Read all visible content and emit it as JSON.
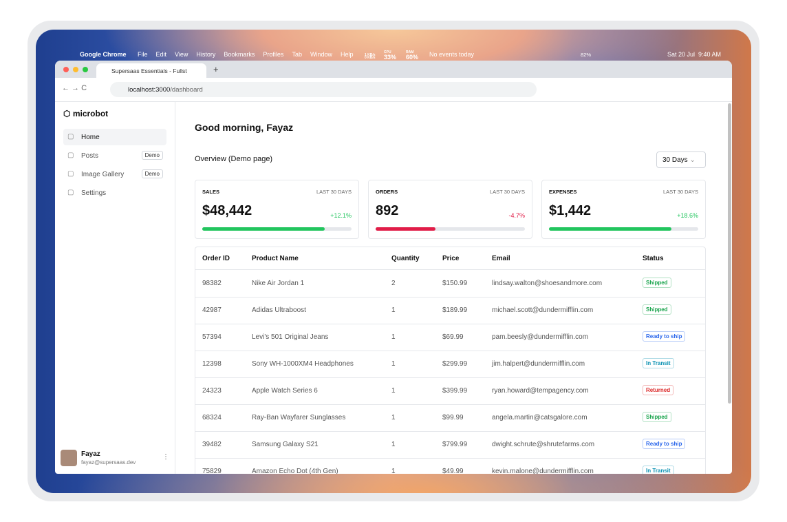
{
  "menu_bar": {
    "app": "Google Chrome",
    "items": [
      "File",
      "Edit",
      "View",
      "History",
      "Bookmarks",
      "Profiles",
      "Tab",
      "Window",
      "Help"
    ],
    "status": {
      "net_up": "1 KB/s",
      "net_down": "0 KB/s",
      "cpu_label": "CPU",
      "cpu": "33%",
      "ram_label": "RAM",
      "ram": "60%",
      "calendar": "No events today",
      "battery": "82%",
      "clock": "Sat 20 Jul  9:40 AM"
    }
  },
  "browser": {
    "tab_title": "Supersaas Essentials - Fullst",
    "url_host": "localhost:3000",
    "url_path": "/dashboard"
  },
  "sidebar": {
    "brand": "microbot",
    "nav": [
      {
        "label": "Home"
      },
      {
        "label": "Posts",
        "badge": "Demo"
      },
      {
        "label": "Image Gallery",
        "badge": "Demo"
      },
      {
        "label": "Settings"
      }
    ],
    "user": {
      "name": "Fayaz",
      "email": "fayaz@supersaas.dev"
    }
  },
  "main": {
    "greeting": "Good morning, Fayaz",
    "section_title": "Overview (Demo page)",
    "range_select": "30 Days",
    "cards": [
      {
        "label": "SALES",
        "period": "LAST 30 DAYS",
        "value": "$48,442",
        "change": "+12.1%",
        "color": "#22c55e"
      },
      {
        "label": "ORDERS",
        "period": "LAST 30 DAYS",
        "value": "892",
        "change": "-4.7%",
        "color": "#e11d48"
      },
      {
        "label": "EXPENSES",
        "period": "LAST 30 DAYS",
        "value": "$1,442",
        "change": "+18.6%",
        "color": "#22c55e"
      }
    ],
    "table": {
      "headers": [
        "Order ID",
        "Product Name",
        "Quantity",
        "Price",
        "Email",
        "Status"
      ],
      "rows": [
        [
          "98382",
          "Nike Air Jordan 1",
          "2",
          "$150.99",
          "lindsay.walton@shoesandmore.com",
          "Shipped"
        ],
        [
          "42987",
          "Adidas Ultraboost",
          "1",
          "$189.99",
          "michael.scott@dundermifflin.com",
          "Shipped"
        ],
        [
          "57394",
          "Levi's 501 Original Jeans",
          "1",
          "$69.99",
          "pam.beesly@dundermifflin.com",
          "Ready to ship"
        ],
        [
          "12398",
          "Sony WH-1000XM4 Headphones",
          "1",
          "$299.99",
          "jim.halpert@dundermifflin.com",
          "In Transit"
        ],
        [
          "24323",
          "Apple Watch Series 6",
          "1",
          "$399.99",
          "ryan.howard@tempagency.com",
          "Returned"
        ],
        [
          "68324",
          "Ray-Ban Wayfarer Sunglasses",
          "1",
          "$99.99",
          "angela.martin@catsgalore.com",
          "Shipped"
        ],
        [
          "39482",
          "Samsung Galaxy S21",
          "1",
          "$799.99",
          "dwight.schrute@shrutefarms.com",
          "Ready to ship"
        ],
        [
          "75829",
          "Amazon Echo Dot (4th Gen)",
          "1",
          "$49.99",
          "kevin.malone@dundermifflin.com",
          "In Transit"
        ]
      ],
      "status_colors": [
        "#16a34a",
        "#16a34a",
        "#2563eb",
        "#0891b2",
        "#dc2626",
        "#16a34a",
        "#2563eb",
        "#0891b2"
      ]
    }
  }
}
